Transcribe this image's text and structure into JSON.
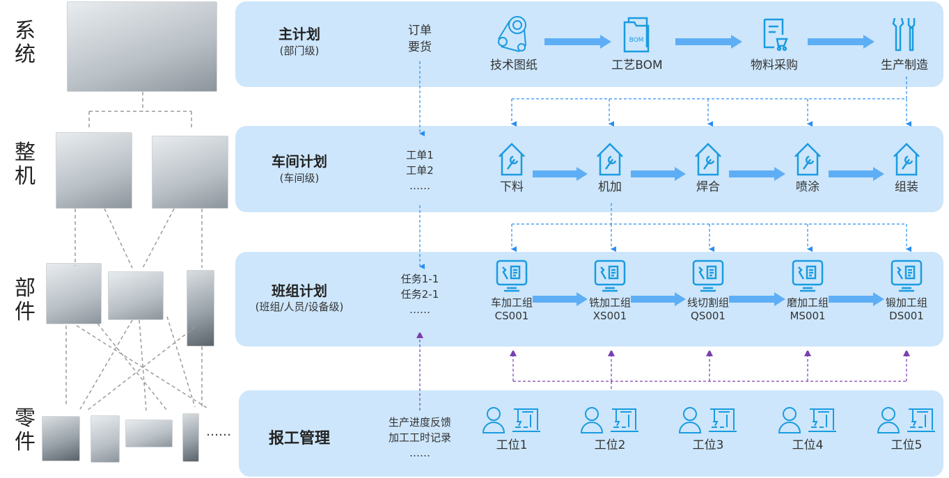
{
  "levels": [
    "系统",
    "整机",
    "部件",
    "零件"
  ],
  "parts_more": "……",
  "rows": [
    {
      "title": "主计划",
      "subtitle": "(部门级)",
      "middle": [
        "订单",
        "要货"
      ],
      "nodes": [
        {
          "icon": "belt-drawing-icon",
          "label": "技术图纸"
        },
        {
          "icon": "bom-folder-icon",
          "label": "工艺BOM"
        },
        {
          "icon": "purchase-doc-icon",
          "label": "物料采购"
        },
        {
          "icon": "tools-icon",
          "label": "生产制造"
        }
      ]
    },
    {
      "title": "车间计划",
      "subtitle": "(车间级)",
      "middle": [
        "工单1",
        "工单2",
        "……"
      ],
      "nodes": [
        {
          "icon": "workshop-icon",
          "label": "下料"
        },
        {
          "icon": "workshop-icon",
          "label": "机加"
        },
        {
          "icon": "workshop-icon",
          "label": "焊合"
        },
        {
          "icon": "workshop-icon",
          "label": "喷涂"
        },
        {
          "icon": "workshop-icon",
          "label": "组装"
        }
      ]
    },
    {
      "title": "班组计划",
      "subtitle": "(班组/人员/设备级)",
      "middle": [
        "任务1-1",
        "任务2-1",
        "……"
      ],
      "nodes": [
        {
          "icon": "monitor-icon",
          "label": "车加工组",
          "code": "CS001"
        },
        {
          "icon": "monitor-icon",
          "label": "铣加工组",
          "code": "XS001"
        },
        {
          "icon": "monitor-icon",
          "label": "线切割组",
          "code": "QS001"
        },
        {
          "icon": "monitor-icon",
          "label": "磨加工组",
          "code": "MS001"
        },
        {
          "icon": "monitor-icon",
          "label": "锻加工组",
          "code": "DS001"
        }
      ]
    },
    {
      "title": "报工管理",
      "subtitle": "",
      "middle": [
        "生产进度反馈",
        "加工工时记录",
        "……"
      ],
      "nodes": [
        {
          "icon": "worker-machine-icon",
          "label": "工位1"
        },
        {
          "icon": "worker-machine-icon",
          "label": "工位2"
        },
        {
          "icon": "worker-machine-icon",
          "label": "工位3"
        },
        {
          "icon": "worker-machine-icon",
          "label": "工位4"
        },
        {
          "icon": "worker-machine-icon",
          "label": "工位5"
        }
      ]
    }
  ],
  "colors": {
    "panel": "#cde6fb",
    "icon": "#1a9be0",
    "arrow": "#5eaef5",
    "link_down": "#2a8ef0",
    "link_up": "#7a3fb0"
  }
}
